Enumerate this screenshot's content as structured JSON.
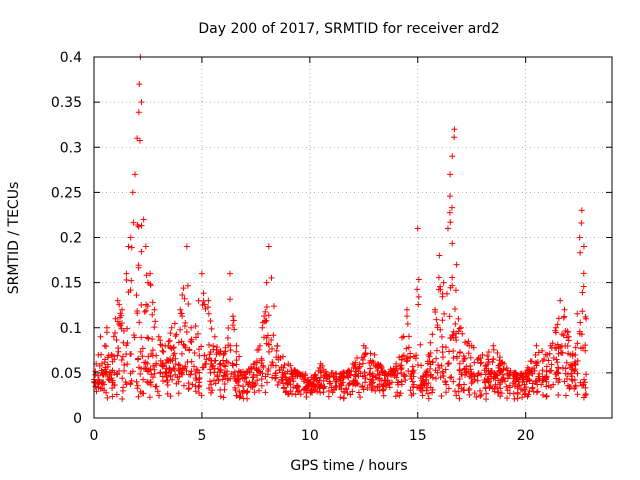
{
  "chart_data": {
    "type": "scatter",
    "title": "Day 200 of 2017, SRMTID for receiver ard2",
    "xlabel": "GPS time / hours",
    "ylabel": "SRMTID / TECUs",
    "xlim": [
      0,
      24
    ],
    "ylim": [
      0,
      0.4
    ],
    "x_ticks": [
      0,
      5,
      10,
      15,
      20
    ],
    "x_tick_labels": [
      "0",
      "5",
      "10",
      "15",
      "20"
    ],
    "y_ticks": [
      0,
      0.05,
      0.1,
      0.15,
      0.2,
      0.25,
      0.3,
      0.35,
      0.4
    ],
    "y_tick_labels": [
      "0",
      "0.05",
      "0.1",
      "0.15",
      "0.2",
      "0.25",
      "0.3",
      "0.35",
      "0.4"
    ],
    "grid": true,
    "marker": "+",
    "color": "#ff0000",
    "data_extent_x": [
      0,
      22.8
    ],
    "series": [
      {
        "name": "SRMTID ard2",
        "note": "dense + markers; envelope points (hour, TECU) approximating the observed spread",
        "points": [
          [
            0.0,
            0.04
          ],
          [
            0.1,
            0.06
          ],
          [
            0.2,
            0.07
          ],
          [
            0.3,
            0.09
          ],
          [
            0.4,
            0.05
          ],
          [
            0.5,
            0.08
          ],
          [
            0.6,
            0.1
          ],
          [
            0.8,
            0.07
          ],
          [
            1.0,
            0.11
          ],
          [
            1.1,
            0.13
          ],
          [
            1.3,
            0.12
          ],
          [
            1.5,
            0.16
          ],
          [
            1.6,
            0.19
          ],
          [
            1.7,
            0.2
          ],
          [
            1.8,
            0.25
          ],
          [
            1.9,
            0.27
          ],
          [
            2.0,
            0.31
          ],
          [
            2.1,
            0.37
          ],
          [
            2.15,
            0.4
          ],
          [
            2.2,
            0.35
          ],
          [
            2.3,
            0.22
          ],
          [
            2.4,
            0.19
          ],
          [
            2.5,
            0.15
          ],
          [
            2.6,
            0.16
          ],
          [
            2.8,
            0.12
          ],
          [
            3.0,
            0.09
          ],
          [
            3.3,
            0.08
          ],
          [
            3.6,
            0.1
          ],
          [
            4.0,
            0.12
          ],
          [
            4.3,
            0.19
          ],
          [
            4.5,
            0.1
          ],
          [
            5.0,
            0.16
          ],
          [
            5.3,
            0.13
          ],
          [
            5.6,
            0.09
          ],
          [
            6.0,
            0.07
          ],
          [
            6.3,
            0.16
          ],
          [
            6.6,
            0.08
          ],
          [
            7.0,
            0.05
          ],
          [
            7.4,
            0.06
          ],
          [
            7.8,
            0.1
          ],
          [
            8.0,
            0.15
          ],
          [
            8.1,
            0.19
          ],
          [
            8.5,
            0.08
          ],
          [
            9.0,
            0.06
          ],
          [
            9.5,
            0.05
          ],
          [
            10.0,
            0.04
          ],
          [
            10.5,
            0.06
          ],
          [
            11.0,
            0.05
          ],
          [
            11.5,
            0.05
          ],
          [
            12.0,
            0.06
          ],
          [
            12.5,
            0.08
          ],
          [
            13.0,
            0.07
          ],
          [
            13.5,
            0.05
          ],
          [
            14.0,
            0.06
          ],
          [
            14.5,
            0.12
          ],
          [
            14.8,
            0.05
          ],
          [
            15.0,
            0.21
          ],
          [
            15.2,
            0.03
          ],
          [
            15.5,
            0.07
          ],
          [
            15.8,
            0.12
          ],
          [
            16.0,
            0.18
          ],
          [
            16.2,
            0.15
          ],
          [
            16.4,
            0.21
          ],
          [
            16.5,
            0.27
          ],
          [
            16.6,
            0.29
          ],
          [
            16.7,
            0.32
          ],
          [
            16.8,
            0.17
          ],
          [
            17.0,
            0.1
          ],
          [
            17.5,
            0.08
          ],
          [
            18.0,
            0.07
          ],
          [
            18.5,
            0.08
          ],
          [
            19.0,
            0.06
          ],
          [
            19.5,
            0.05
          ],
          [
            20.0,
            0.05
          ],
          [
            20.5,
            0.08
          ],
          [
            21.0,
            0.07
          ],
          [
            21.4,
            0.1
          ],
          [
            21.6,
            0.13
          ],
          [
            21.8,
            0.12
          ],
          [
            22.0,
            0.09
          ],
          [
            22.3,
            0.07
          ],
          [
            22.5,
            0.2
          ],
          [
            22.6,
            0.23
          ],
          [
            22.7,
            0.19
          ],
          [
            22.8,
            0.11
          ]
        ]
      }
    ]
  }
}
